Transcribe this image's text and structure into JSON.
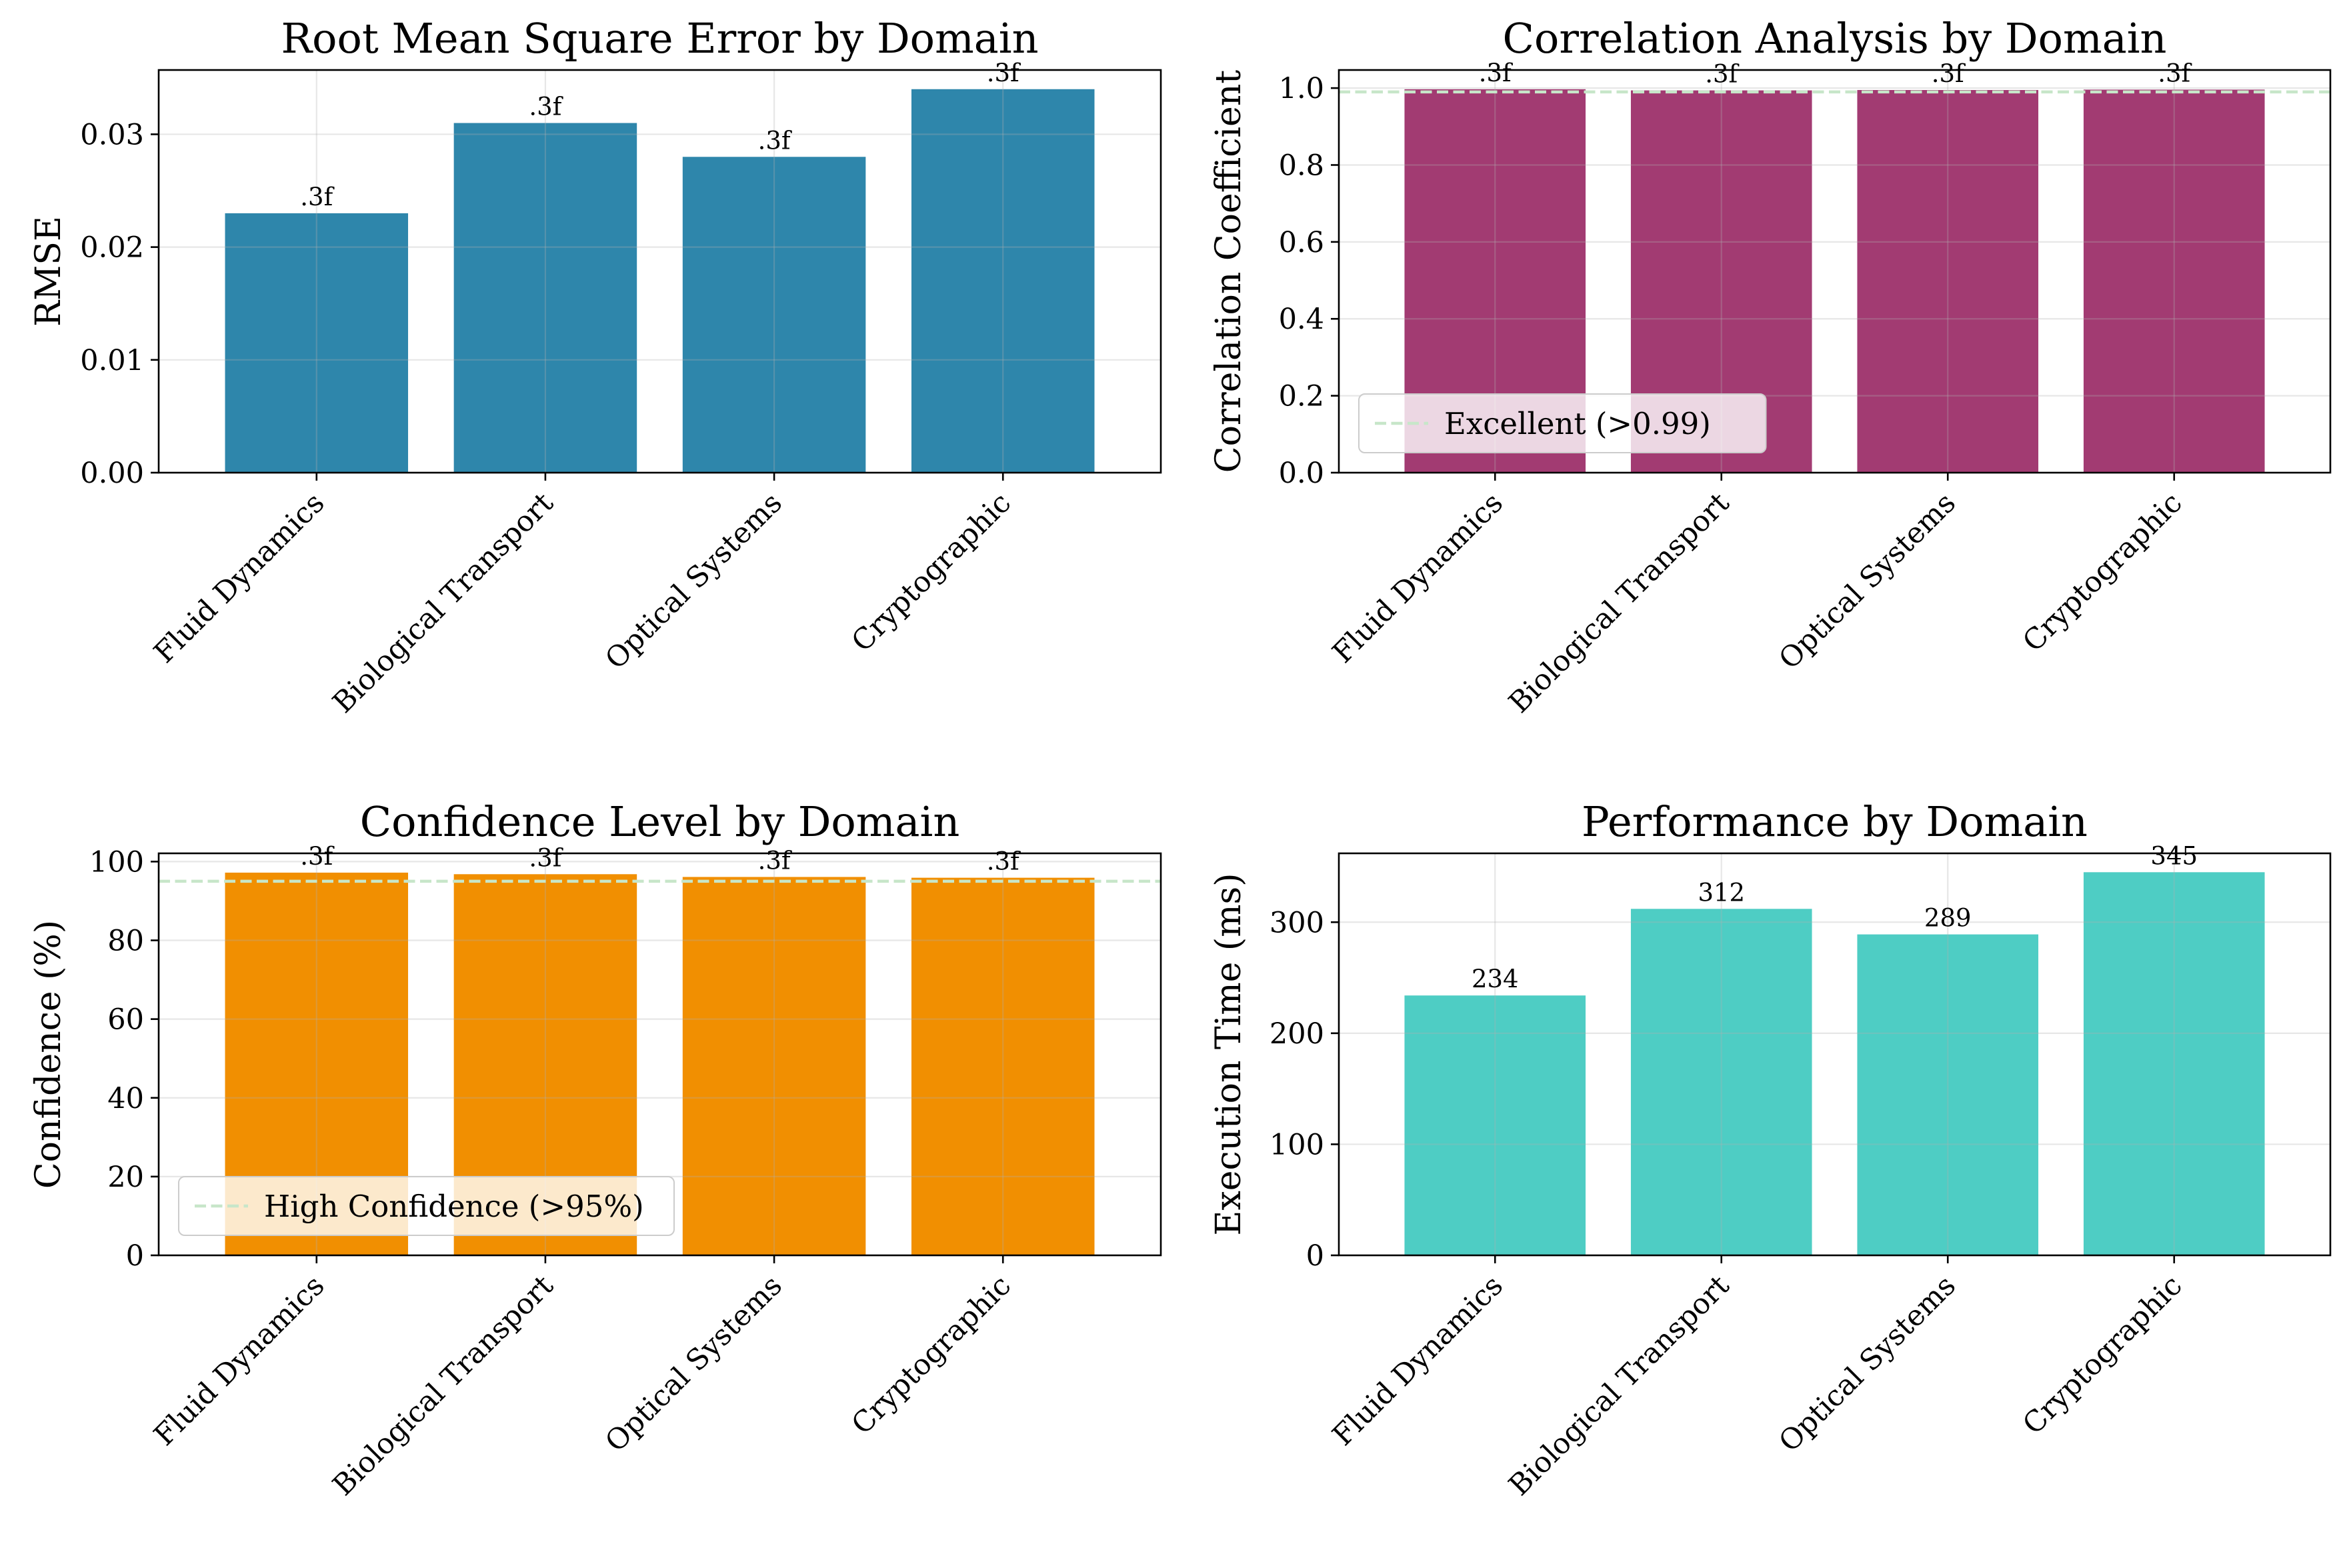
{
  "colors": {
    "rmse": "#2e86ab",
    "correlation": "#a23b72",
    "confidence": "#f18f01",
    "performance": "#4ecdc4",
    "threshold": "#c7e6c9"
  },
  "chart_data": [
    {
      "type": "bar",
      "title": "Root Mean Square Error by Domain",
      "xlabel": "",
      "ylabel": "RMSE",
      "categories": [
        "Fluid Dynamics",
        "Biological Transport",
        "Optical Systems",
        "Cryptographic"
      ],
      "values": [
        0.023,
        0.031,
        0.028,
        0.034
      ],
      "data_labels": [
        ".3f",
        ".3f",
        ".3f",
        ".3f"
      ],
      "ylim": [
        0,
        0.0357
      ],
      "yticks": [
        0,
        0.01,
        0.02,
        0.03
      ],
      "ytick_labels": [
        "0.00",
        "0.01",
        "0.02",
        "0.03"
      ],
      "grid": true,
      "threshold": null,
      "legend": null
    },
    {
      "type": "bar",
      "title": "Correlation Analysis by Domain",
      "xlabel": "",
      "ylabel": "Correlation Coefficient",
      "categories": [
        "Fluid Dynamics",
        "Biological Transport",
        "Optical Systems",
        "Cryptographic"
      ],
      "values": [
        0.997,
        0.994,
        0.995,
        0.996
      ],
      "data_labels": [
        ".3f",
        ".3f",
        ".3f",
        ".3f"
      ],
      "ylim": [
        0,
        1.047
      ],
      "yticks": [
        0,
        0.2,
        0.4,
        0.6,
        0.8,
        1.0
      ],
      "ytick_labels": [
        "0.0",
        "0.2",
        "0.4",
        "0.6",
        "0.8",
        "1.0"
      ],
      "grid": true,
      "threshold": 0.99,
      "legend": {
        "label": "Excellent (>0.99)",
        "placement": "lower-left"
      }
    },
    {
      "type": "bar",
      "title": "Confidence Level by Domain",
      "xlabel": "",
      "ylabel": "Confidence (%)",
      "categories": [
        "Fluid Dynamics",
        "Biological Transport",
        "Optical Systems",
        "Cryptographic"
      ],
      "values": [
        97.2,
        96.8,
        96.1,
        95.9
      ],
      "data_labels": [
        ".3f",
        ".3f",
        ".3f",
        ".3f"
      ],
      "ylim": [
        0,
        102.1
      ],
      "yticks": [
        0,
        20,
        40,
        60,
        80,
        100
      ],
      "ytick_labels": [
        "0",
        "20",
        "40",
        "60",
        "80",
        "100"
      ],
      "grid": true,
      "threshold": 95,
      "legend": {
        "label": "High Confidence (>95%)",
        "placement": "lower-left"
      }
    },
    {
      "type": "bar",
      "title": "Performance by Domain",
      "xlabel": "",
      "ylabel": "Execution Time (ms)",
      "categories": [
        "Fluid Dynamics",
        "Biological Transport",
        "Optical Systems",
        "Cryptographic"
      ],
      "values": [
        234,
        312,
        289,
        345
      ],
      "data_labels": [
        "234",
        "312",
        "289",
        "345"
      ],
      "ylim": [
        0,
        362
      ],
      "yticks": [
        0,
        100,
        200,
        300
      ],
      "ytick_labels": [
        "0",
        "100",
        "200",
        "300"
      ],
      "grid": true,
      "threshold": null,
      "legend": null
    }
  ]
}
